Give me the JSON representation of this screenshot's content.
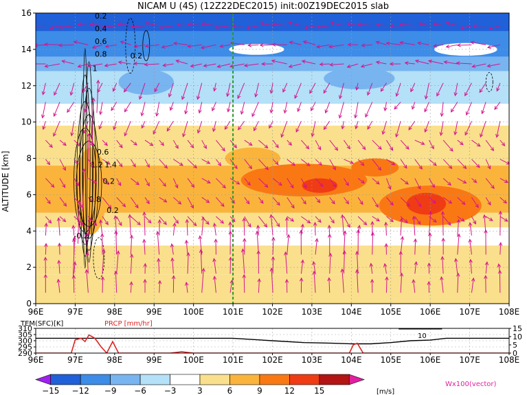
{
  "title": "NICAM U (4S) (12Z22DEC2015) init:00Z19DEC2015 slab",
  "chart_data": [
    {
      "type": "heatmap",
      "title": "NICAM U (4S) (12Z22DEC2015) init:00Z19DEC2015 slab",
      "ylabel": "ALTITUDE [km]",
      "xlim": [
        96,
        108
      ],
      "ylim": [
        0,
        16
      ],
      "x_ticks": [
        "96E",
        "97E",
        "98E",
        "99E",
        "100E",
        "101E",
        "102E",
        "103E",
        "104E",
        "105E",
        "106E",
        "107E",
        "108E"
      ],
      "y_ticks": [
        "0",
        "2",
        "4",
        "6",
        "8",
        "10",
        "12",
        "14",
        "16"
      ],
      "grid": true,
      "marker_line_lon": 101,
      "contour_labels": [
        "0.2",
        "0.4",
        "0.6",
        "0.8",
        "0.2",
        "1",
        "0.6",
        "1.2",
        "1.4",
        "0.2",
        "0.8",
        "0.2",
        "-0.2"
      ],
      "bands": [
        {
          "y": [
            15.0,
            16.0
          ],
          "u": -15
        },
        {
          "y": [
            13.6,
            15.0
          ],
          "u": -10
        },
        {
          "y": [
            12.8,
            13.6
          ],
          "u": -7
        },
        {
          "y": [
            11.0,
            12.8
          ],
          "u": -5
        },
        {
          "y": [
            9.8,
            11.0
          ],
          "u": 0
        },
        {
          "y": [
            8.8,
            9.8
          ],
          "u": 4
        },
        {
          "y": [
            7.6,
            8.8
          ],
          "u": 5
        },
        {
          "y": [
            5.0,
            7.6
          ],
          "u": 7
        },
        {
          "y": [
            4.2,
            5.0
          ],
          "u": 5
        },
        {
          "y": [
            3.2,
            4.2
          ],
          "u": 0
        },
        {
          "y": [
            1.6,
            3.2
          ],
          "u": 4
        },
        {
          "y": [
            0.0,
            1.6
          ],
          "u": 5
        }
      ],
      "blobs": [
        {
          "lon": 102.8,
          "alt": 6.8,
          "rx": 1.6,
          "ry": 0.9,
          "u": 10
        },
        {
          "lon": 103.2,
          "alt": 6.5,
          "rx": 0.45,
          "ry": 0.4,
          "u": 12
        },
        {
          "lon": 106.0,
          "alt": 5.4,
          "rx": 1.3,
          "ry": 1.1,
          "u": 10
        },
        {
          "lon": 105.9,
          "alt": 5.5,
          "rx": 0.5,
          "ry": 0.6,
          "u": 12
        },
        {
          "lon": 97.4,
          "alt": 6.2,
          "rx": 0.4,
          "ry": 2.4,
          "u": 8
        },
        {
          "lon": 101.5,
          "alt": 8.0,
          "rx": 0.7,
          "ry": 0.6,
          "u": 8
        },
        {
          "lon": 104.6,
          "alt": 7.5,
          "rx": 0.6,
          "ry": 0.5,
          "u": 9
        },
        {
          "lon": 98.8,
          "alt": 12.2,
          "rx": 0.7,
          "ry": 0.7,
          "u": -7
        },
        {
          "lon": 104.2,
          "alt": 12.4,
          "rx": 0.9,
          "ry": 0.6,
          "u": -8
        },
        {
          "lon": 101.6,
          "alt": 14.0,
          "rx": 0.7,
          "ry": 0.3,
          "u": -1
        },
        {
          "lon": 106.9,
          "alt": 14.0,
          "rx": 0.8,
          "ry": 0.35,
          "u": -1
        }
      ],
      "vectors_legend": "Wx100(vector)"
    },
    {
      "type": "line",
      "title": "",
      "series": [
        {
          "name": "TEM(SFC)[K]",
          "axis": "left",
          "color": "#000000",
          "x": [
            96,
            97,
            98,
            99,
            100,
            101,
            101.5,
            102,
            102.8,
            103.5,
            104.0,
            104.5,
            105.0,
            105.5,
            106.0,
            106.4,
            107,
            108
          ],
          "values": [
            302,
            302,
            302,
            302,
            302,
            302,
            301,
            300,
            298.5,
            298,
            297.5,
            297.5,
            298.5,
            300,
            300.5,
            302,
            302,
            302
          ]
        },
        {
          "name": "PRCP [mm/hr]",
          "axis": "right",
          "color": "#dd2222",
          "x": [
            96,
            96.9,
            97.0,
            97.15,
            97.25,
            97.35,
            97.5,
            97.65,
            97.8,
            97.95,
            98.1,
            99.4,
            99.7,
            100,
            103.95,
            104.05,
            104.15,
            104.3,
            108
          ],
          "values": [
            0,
            0,
            8,
            9,
            7,
            11,
            9,
            4,
            0,
            7,
            0,
            0,
            0.8,
            0,
            0,
            5,
            6,
            0,
            0
          ]
        }
      ],
      "left_axis": {
        "ticks": [
          "290",
          "295",
          "300",
          "305",
          "310"
        ],
        "ylim": [
          290,
          310
        ]
      },
      "right_axis": {
        "ticks": [
          "0",
          "5",
          "10",
          "15"
        ],
        "ylim": [
          0,
          15
        ]
      },
      "x_ticks": [
        "96E",
        "97E",
        "98E",
        "99E",
        "100E",
        "101E",
        "102E",
        "103E",
        "104E",
        "105E",
        "106E",
        "107E",
        "108E"
      ],
      "xlim": [
        96,
        108
      ],
      "annotation": "10",
      "legend_labels": [
        "TEM(SFC)[K]",
        "PRCP [mm/hr]"
      ]
    }
  ],
  "colorbar": {
    "levels": [
      "−15",
      "−12",
      "−9",
      "−6",
      "−3",
      "3",
      "6",
      "9",
      "12",
      "15"
    ],
    "colors": [
      "#a020f0",
      "#2060d8",
      "#3c8ce8",
      "#78b4f0",
      "#b4e0f8",
      "#ffffff",
      "#fae08c",
      "#fab43c",
      "#fa7814",
      "#f03c14",
      "#b41414",
      "#e020a0"
    ],
    "unit": "[m/s]"
  }
}
